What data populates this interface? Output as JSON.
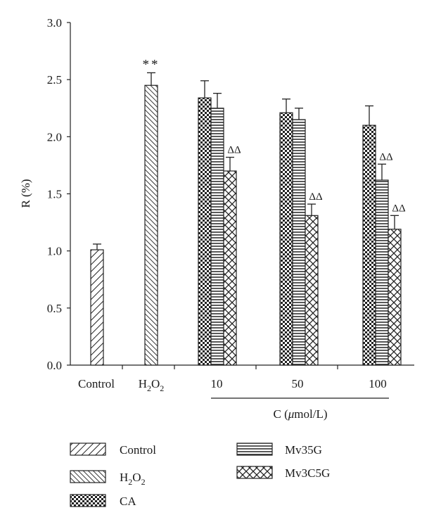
{
  "chart_data": {
    "type": "bar",
    "ylabel": "R (%)",
    "xlabel": "C (μmol/L)",
    "ylim": [
      0,
      3.0
    ],
    "yticks": [
      "0.0",
      "0.5",
      "1.0",
      "1.5",
      "2.0",
      "2.5",
      "3.0"
    ],
    "categories": [
      "Control",
      "H2O2",
      "10",
      "50",
      "100"
    ],
    "h2o2_label": {
      "main": "H",
      "sub1": "2",
      "mid": "O",
      "sub2": "2"
    },
    "xlabel_parts": {
      "prefix": "C (",
      "mu": "μ",
      "suffix": "mol/L)"
    },
    "series": [
      {
        "name": "Control",
        "pattern": "fwd-diag",
        "values": [
          1.01,
          null,
          null,
          null,
          null
        ],
        "errors": [
          0.05,
          null,
          null,
          null,
          null
        ]
      },
      {
        "name": "H2O2",
        "pattern": "back-diag",
        "values": [
          null,
          2.45,
          null,
          null,
          null
        ],
        "errors": [
          null,
          0.11,
          null,
          null,
          null
        ]
      },
      {
        "name": "CA",
        "pattern": "checker",
        "values": [
          null,
          null,
          2.34,
          2.21,
          2.1
        ],
        "errors": [
          null,
          null,
          0.15,
          0.12,
          0.17
        ]
      },
      {
        "name": "Mv35G",
        "pattern": "horizontal",
        "values": [
          null,
          null,
          2.25,
          2.15,
          1.62
        ],
        "errors": [
          null,
          null,
          0.13,
          0.1,
          0.14
        ]
      },
      {
        "name": "Mv3C5G",
        "pattern": "crosshatch",
        "values": [
          null,
          null,
          1.7,
          1.31,
          1.19
        ],
        "errors": [
          null,
          null,
          0.12,
          0.1,
          0.12
        ]
      }
    ],
    "annotations": [
      {
        "category": "H2O2",
        "series": "H2O2",
        "text": "**"
      },
      {
        "category": "10",
        "series": "Mv3C5G",
        "text": "ΔΔ"
      },
      {
        "category": "50",
        "series": "Mv3C5G",
        "text": "ΔΔ"
      },
      {
        "category": "100",
        "series": "Mv35G",
        "text": "ΔΔ"
      },
      {
        "category": "100",
        "series": "Mv3C5G",
        "text": "ΔΔ"
      }
    ],
    "legend": {
      "position": "bottom",
      "items": [
        {
          "label": "Control",
          "pattern": "fwd-diag"
        },
        {
          "label": "H2O2",
          "pattern": "back-diag"
        },
        {
          "label": "CA",
          "pattern": "checker"
        },
        {
          "label": "Mv35G",
          "pattern": "horizontal"
        },
        {
          "label": "Mv3C5G",
          "pattern": "crosshatch"
        }
      ]
    }
  }
}
